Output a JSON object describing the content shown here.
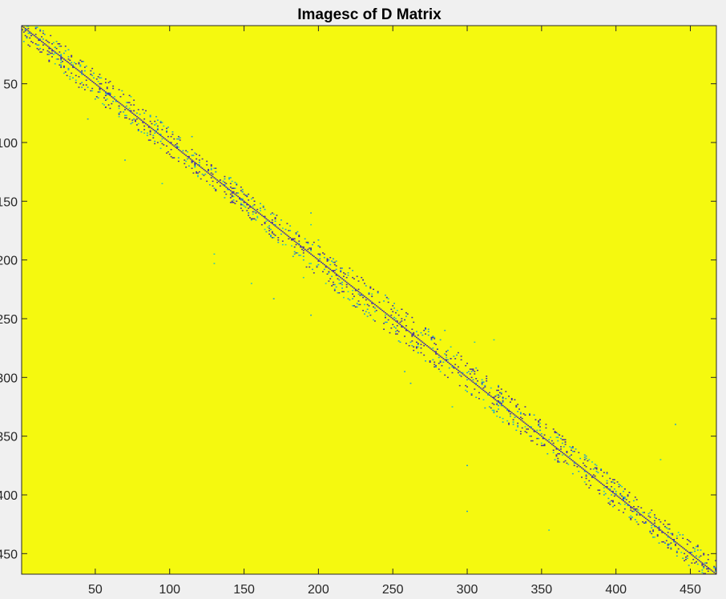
{
  "chart_data": {
    "type": "heatmap",
    "title": "Imagesc of D Matrix",
    "xlabel": "",
    "ylabel": "",
    "xlim": [
      0.5,
      467.5
    ],
    "ylim": [
      0.5,
      467.5
    ],
    "y_reversed": true,
    "x_ticks": [
      50,
      100,
      150,
      200,
      250,
      300,
      350,
      400,
      450
    ],
    "x_tick_labels": [
      "50",
      "100",
      "150",
      "200",
      "250",
      "300",
      "350",
      "400",
      "450"
    ],
    "y_ticks": [
      50,
      100,
      150,
      200,
      250,
      300,
      350,
      400,
      450
    ],
    "y_tick_labels": [
      "50",
      "100",
      "150",
      "200",
      "250",
      "300",
      "350",
      "400",
      "450"
    ],
    "background_color": "#f5f90f",
    "colors": {
      "background": "#f5f90f",
      "dark_cell": "#3d26a8",
      "mid_cell": "#1a9ad8",
      "light_cell": "#26c3b8",
      "figure": "#f0f0f0"
    },
    "grid": false,
    "colorbar": false,
    "notes": "Sparse banded matrix: nonzero cells concentrated near the main diagonal; all other entries at max value (yellow).",
    "band_halfwidth_samples": [
      {
        "row": 25,
        "halfwidth": 12
      },
      {
        "row": 50,
        "halfwidth": 14
      },
      {
        "row": 100,
        "halfwidth": 12
      },
      {
        "row": 150,
        "halfwidth": 10
      },
      {
        "row": 200,
        "halfwidth": 14
      },
      {
        "row": 250,
        "halfwidth": 16
      },
      {
        "row": 300,
        "halfwidth": 14
      },
      {
        "row": 350,
        "halfwidth": 14
      },
      {
        "row": 400,
        "halfwidth": 12
      },
      {
        "row": 450,
        "halfwidth": 12
      }
    ],
    "outliers": [
      {
        "row": 80,
        "col": 45
      },
      {
        "row": 90,
        "col": 98
      },
      {
        "row": 95,
        "col": 115
      },
      {
        "row": 115,
        "col": 70
      },
      {
        "row": 135,
        "col": 95
      },
      {
        "row": 160,
        "col": 195
      },
      {
        "row": 170,
        "col": 195
      },
      {
        "row": 183,
        "col": 200
      },
      {
        "row": 195,
        "col": 130
      },
      {
        "row": 203,
        "col": 130
      },
      {
        "row": 215,
        "col": 190
      },
      {
        "row": 220,
        "col": 155
      },
      {
        "row": 233,
        "col": 170
      },
      {
        "row": 247,
        "col": 195
      },
      {
        "row": 260,
        "col": 285
      },
      {
        "row": 268,
        "col": 318
      },
      {
        "row": 270,
        "col": 305
      },
      {
        "row": 295,
        "col": 258
      },
      {
        "row": 305,
        "col": 262
      },
      {
        "row": 325,
        "col": 290
      },
      {
        "row": 340,
        "col": 440
      },
      {
        "row": 375,
        "col": 300
      },
      {
        "row": 370,
        "col": 430
      },
      {
        "row": 414,
        "col": 300
      },
      {
        "row": 430,
        "col": 355
      }
    ]
  }
}
